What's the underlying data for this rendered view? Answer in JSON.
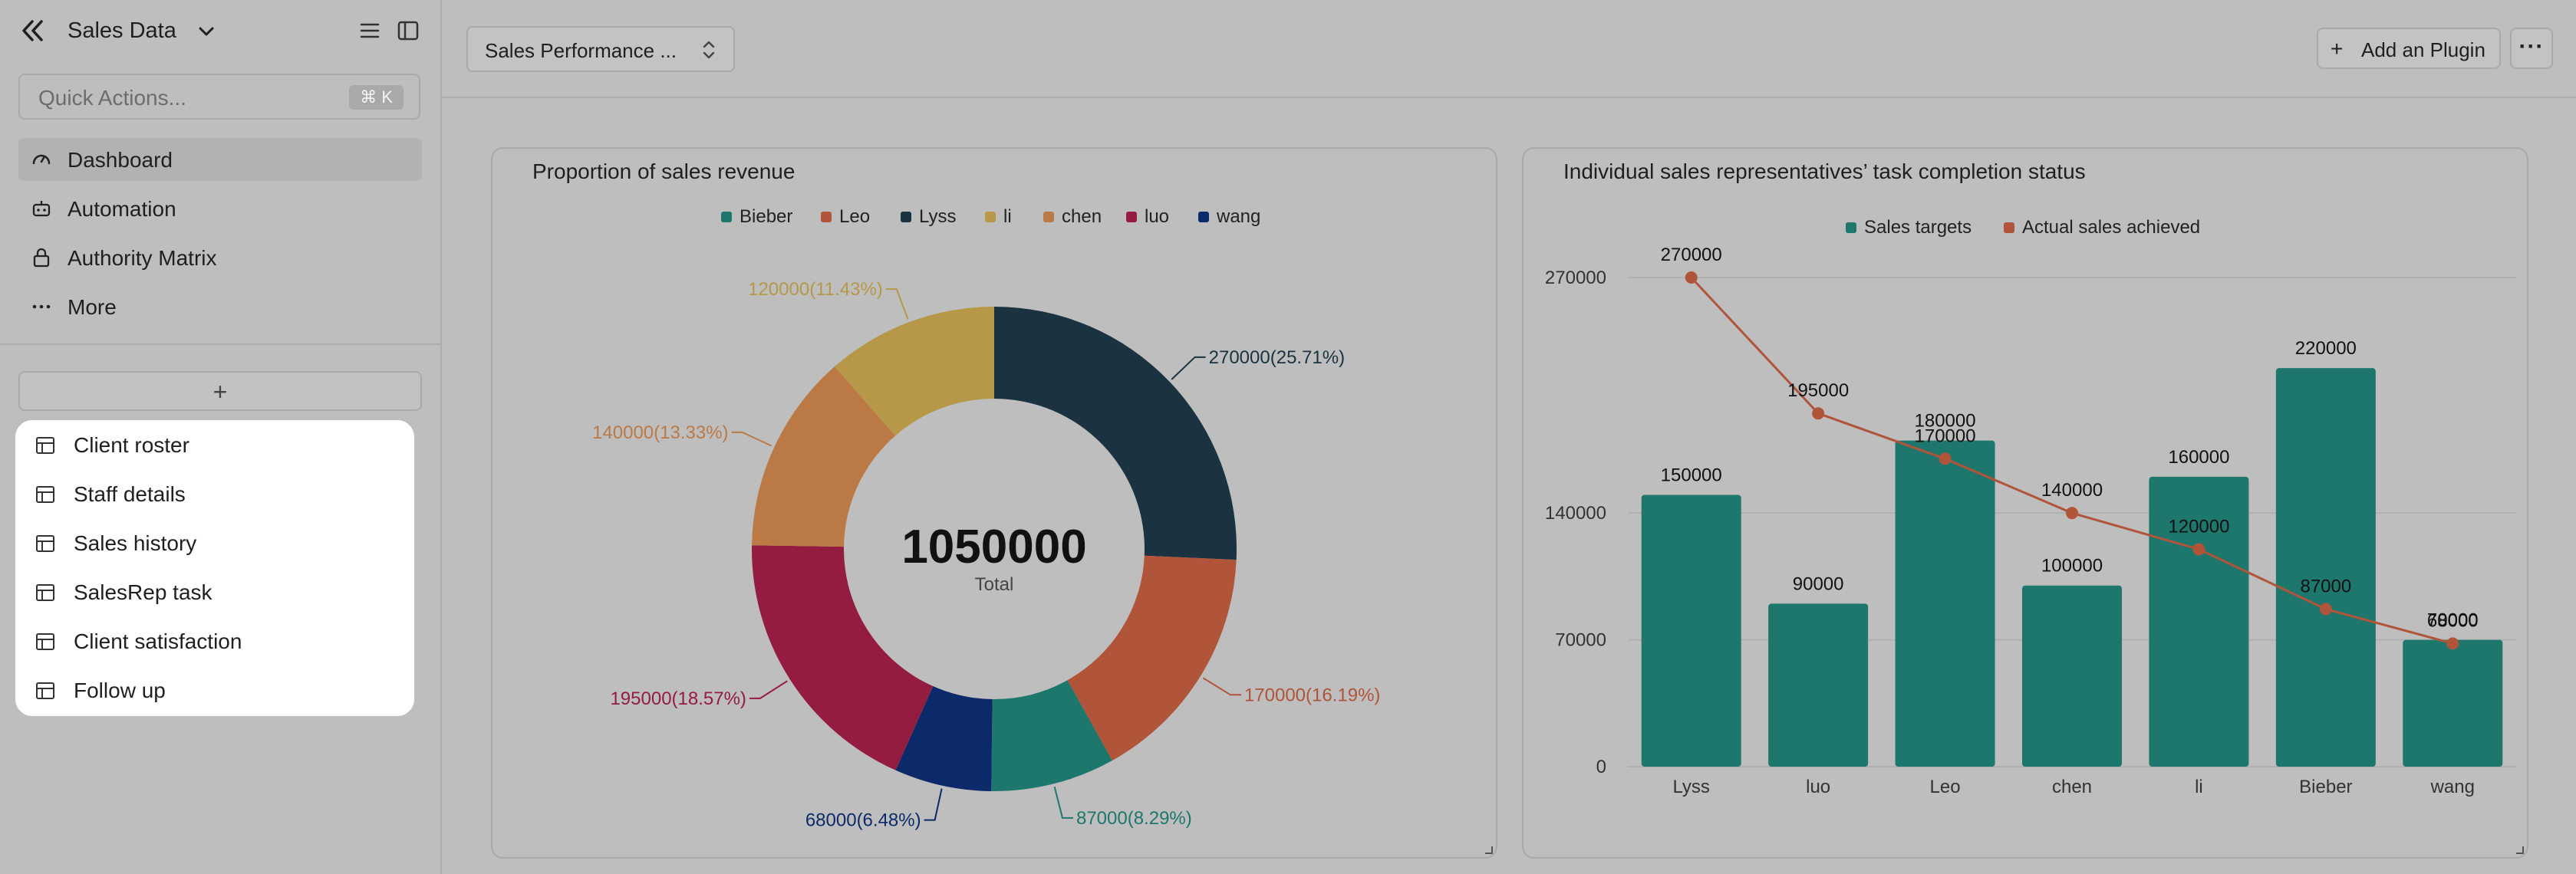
{
  "sidebar": {
    "title": "Sales Data",
    "search_placeholder": "Quick Actions...",
    "shortcut": "⌘ K",
    "nav": [
      {
        "label": "Dashboard",
        "icon": "dashboard-gauge-icon",
        "active": true
      },
      {
        "label": "Automation",
        "icon": "robot-icon",
        "active": false
      },
      {
        "label": "Authority Matrix",
        "icon": "lock-icon",
        "active": false
      },
      {
        "label": "More",
        "icon": "more-dots-icon",
        "active": false
      }
    ],
    "add_label": "+",
    "tables": [
      {
        "label": "Client roster"
      },
      {
        "label": "Staff details"
      },
      {
        "label": "Sales history"
      },
      {
        "label": "SalesRep task"
      },
      {
        "label": "Client satisfaction"
      },
      {
        "label": "Follow up"
      }
    ]
  },
  "topbar": {
    "dashboard_select": "Sales Performance ...",
    "add_plugin": "Add an Plugin",
    "plus": "+",
    "more": "···"
  },
  "chart_data": [
    {
      "type": "pie",
      "title": "Proportion of sales revenue",
      "center_value": "1050000",
      "center_label": "Total",
      "legend": [
        "Bieber",
        "Leo",
        "Lyss",
        "li",
        "chen",
        "luo",
        "wang"
      ],
      "slices": [
        {
          "name": "Lyss",
          "value": 270000,
          "label": "270000(25.71%)",
          "color": "#1b3340"
        },
        {
          "name": "Leo",
          "value": 170000,
          "label": "170000(16.19%)",
          "color": "#b0543a"
        },
        {
          "name": "Bieber",
          "value": 87000,
          "label": "87000(8.29%)",
          "color": "#1e776c"
        },
        {
          "name": "wang",
          "value": 68000,
          "label": "68000(6.48%)",
          "color": "#0c2a6a"
        },
        {
          "name": "luo",
          "value": 195000,
          "label": "195000(18.57%)",
          "color": "#941c40"
        },
        {
          "name": "chen",
          "value": 140000,
          "label": "140000(13.33%)",
          "color": "#bb7a45"
        },
        {
          "name": "li",
          "value": 120000,
          "label": "120000(11.43%)",
          "color": "#b69848"
        }
      ],
      "legend_colors": {
        "Bieber": "#1e776c",
        "Leo": "#b0543a",
        "Lyss": "#1b3340",
        "li": "#b69848",
        "chen": "#bb7a45",
        "luo": "#941c40",
        "wang": "#0c2a6a"
      }
    },
    {
      "type": "bar",
      "title": "Individual sales representatives’ task completion status",
      "categories": [
        "Lyss",
        "luo",
        "Leo",
        "chen",
        "li",
        "Bieber",
        "wang"
      ],
      "series": [
        {
          "name": "Sales targets",
          "type": "bar",
          "color": "#1e776c",
          "values": [
            150000,
            90000,
            180000,
            100000,
            160000,
            220000,
            70000
          ]
        },
        {
          "name": "Actual sales achieved",
          "type": "line",
          "color": "#b0543a",
          "values": [
            270000,
            195000,
            170000,
            140000,
            120000,
            87000,
            68000
          ]
        }
      ],
      "y_ticks": [
        "270000",
        "140000",
        "70000",
        "0"
      ],
      "grid": true,
      "legend_position": "top-center"
    }
  ]
}
